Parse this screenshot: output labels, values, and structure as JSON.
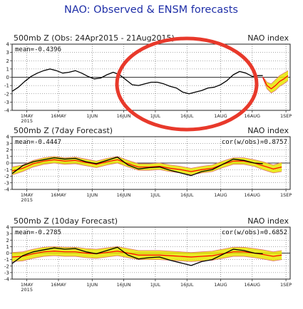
{
  "figure": {
    "title": "NAO: Observed & ENSM forecasts",
    "annotation_color": "#e8392b",
    "colors": {
      "title": "#1f2fa8",
      "observed": "#000000",
      "ensemble_mean": "#ff0000",
      "ensemble_band": "#e6e600",
      "ensemble_members": "#e07070",
      "grid": "#555555",
      "zero_line": "#333333"
    }
  },
  "chart_data": [
    {
      "type": "line",
      "title": "500mb Z (Obs: 24Apr2015 - 21Aug2015)",
      "index_label": "NAO index",
      "stat_left": "mean=-0.4396",
      "stat_right": "",
      "ylim": [
        -4,
        4
      ],
      "yticks": [
        -4,
        -3,
        -2,
        -1,
        0,
        1,
        2,
        3,
        4
      ],
      "xlim_day": [
        0,
        132
      ],
      "grid": true,
      "xtick_labels": [
        {
          "label": "1MAY",
          "sub": "2015",
          "day": 7
        },
        {
          "label": "16MAY",
          "sub": "",
          "day": 22
        },
        {
          "label": "1JUN",
          "sub": "",
          "day": 38
        },
        {
          "label": "16JUN",
          "sub": "",
          "day": 53
        },
        {
          "label": "1JUL",
          "sub": "",
          "day": 68
        },
        {
          "label": "16JUL",
          "sub": "",
          "day": 83
        },
        {
          "label": "1AUG",
          "sub": "",
          "day": 99
        },
        {
          "label": "16AUG",
          "sub": "",
          "day": 114
        },
        {
          "label": "1SEP",
          "sub": "",
          "day": 130
        }
      ],
      "series": [
        {
          "role": "observed",
          "x": [
            0,
            3,
            6,
            9,
            12,
            15,
            18,
            21,
            24,
            27,
            30,
            33,
            36,
            39,
            42,
            45,
            48,
            51,
            54,
            57,
            60,
            63,
            66,
            69,
            72,
            75,
            78,
            81,
            84,
            87,
            90,
            93,
            96,
            99,
            102,
            105,
            108,
            111,
            114,
            117,
            119
          ],
          "y": [
            -1.7,
            -1.2,
            -0.5,
            0.1,
            0.5,
            0.8,
            1.0,
            0.8,
            0.5,
            0.6,
            0.8,
            0.5,
            0.1,
            -0.2,
            -0.1,
            0.3,
            0.6,
            0.3,
            -0.3,
            -0.9,
            -1.0,
            -0.8,
            -0.6,
            -0.6,
            -0.8,
            -1.1,
            -1.3,
            -1.8,
            -2.0,
            -1.8,
            -1.6,
            -1.3,
            -1.2,
            -0.9,
            -0.4,
            0.3,
            0.7,
            0.5,
            0.1,
            0.2,
            0.2
          ]
        },
        {
          "role": "ensemble_mean",
          "x": [
            119,
            121,
            123,
            125,
            127,
            129,
            131
          ],
          "y": [
            0.0,
            -1.0,
            -1.4,
            -1.0,
            -0.5,
            -0.2,
            0.2
          ]
        },
        {
          "role": "ensemble_band_lower",
          "x": [
            119,
            121,
            123,
            125,
            127,
            129,
            131
          ],
          "y": [
            -0.1,
            -1.4,
            -1.9,
            -1.6,
            -1.1,
            -0.8,
            -0.4
          ]
        },
        {
          "role": "ensemble_band_upper",
          "x": [
            119,
            121,
            123,
            125,
            127,
            129,
            131
          ],
          "y": [
            0.1,
            -0.6,
            -0.8,
            -0.3,
            0.2,
            0.5,
            0.8
          ]
        }
      ]
    },
    {
      "type": "line",
      "title": "500mb Z (7day Forecast)",
      "index_label": "NAO index",
      "stat_left": "mean=-0.4447",
      "stat_right": "cor(w/obs)=0.8757",
      "ylim": [
        -4,
        4
      ],
      "yticks": [
        -4,
        -3,
        -2,
        -1,
        0,
        1,
        2,
        3,
        4
      ],
      "xlim_day": [
        0,
        132
      ],
      "grid": true,
      "xtick_labels": [
        {
          "label": "1MAY",
          "sub": "2015",
          "day": 7
        },
        {
          "label": "16MAY",
          "sub": "",
          "day": 22
        },
        {
          "label": "1JUN",
          "sub": "",
          "day": 38
        },
        {
          "label": "16JUN",
          "sub": "",
          "day": 53
        },
        {
          "label": "1JUL",
          "sub": "",
          "day": 68
        },
        {
          "label": "16JUL",
          "sub": "",
          "day": 83
        },
        {
          "label": "1AUG",
          "sub": "",
          "day": 99
        },
        {
          "label": "16AUG",
          "sub": "",
          "day": 114
        },
        {
          "label": "1SEP",
          "sub": "",
          "day": 130
        }
      ],
      "series": [
        {
          "role": "observed",
          "x": [
            0,
            5,
            10,
            15,
            20,
            25,
            30,
            35,
            40,
            45,
            50,
            55,
            60,
            65,
            70,
            75,
            80,
            85,
            90,
            95,
            100,
            105,
            110,
            115,
            119
          ],
          "y": [
            -1.6,
            -0.4,
            0.2,
            0.5,
            0.8,
            0.6,
            0.7,
            0.2,
            -0.1,
            0.4,
            0.9,
            -0.3,
            -0.9,
            -0.7,
            -0.6,
            -1.1,
            -1.5,
            -1.9,
            -1.3,
            -1.0,
            -0.2,
            0.6,
            0.4,
            0.0,
            -0.1
          ]
        },
        {
          "role": "ensemble_mean",
          "x": [
            0,
            5,
            10,
            15,
            20,
            25,
            30,
            35,
            40,
            45,
            50,
            55,
            60,
            65,
            70,
            75,
            80,
            85,
            90,
            95,
            100,
            105,
            110,
            115,
            119,
            124,
            128
          ],
          "y": [
            -1.2,
            -0.8,
            -0.1,
            0.3,
            0.5,
            0.3,
            0.4,
            0.1,
            -0.2,
            0.2,
            0.5,
            -0.1,
            -0.6,
            -0.6,
            -0.5,
            -0.8,
            -1.0,
            -1.3,
            -1.0,
            -0.8,
            -0.2,
            0.3,
            0.3,
            0.0,
            -0.4,
            -0.9,
            -0.6
          ]
        },
        {
          "role": "ensemble_band_lower",
          "x": [
            0,
            5,
            10,
            15,
            20,
            25,
            30,
            35,
            40,
            45,
            50,
            55,
            60,
            65,
            70,
            75,
            80,
            85,
            90,
            95,
            100,
            105,
            110,
            115,
            119,
            124,
            128
          ],
          "y": [
            -1.8,
            -1.3,
            -0.6,
            -0.2,
            0.0,
            -0.2,
            -0.1,
            -0.4,
            -0.7,
            -0.3,
            0.0,
            -0.6,
            -1.1,
            -1.1,
            -1.0,
            -1.3,
            -1.5,
            -1.8,
            -1.5,
            -1.3,
            -0.7,
            -0.2,
            -0.2,
            -0.5,
            -1.0,
            -1.5,
            -1.3
          ]
        },
        {
          "role": "ensemble_band_upper",
          "x": [
            0,
            5,
            10,
            15,
            20,
            25,
            30,
            35,
            40,
            45,
            50,
            55,
            60,
            65,
            70,
            75,
            80,
            85,
            90,
            95,
            100,
            105,
            110,
            115,
            119,
            124,
            128
          ],
          "y": [
            -0.6,
            -0.3,
            0.4,
            0.8,
            1.0,
            0.8,
            0.9,
            0.6,
            0.3,
            0.7,
            1.0,
            0.4,
            -0.1,
            -0.1,
            0.0,
            -0.3,
            -0.5,
            -0.8,
            -0.5,
            -0.3,
            0.3,
            0.8,
            0.8,
            0.5,
            0.2,
            -0.3,
            0.1
          ]
        }
      ]
    },
    {
      "type": "line",
      "title": "500mb Z (10day Forecast)",
      "index_label": "NAO index",
      "stat_left": "mean=-0.2785",
      "stat_right": "cor(w/obs)=0.6852",
      "ylim": [
        -4,
        4
      ],
      "yticks": [
        -4,
        -3,
        -2,
        -1,
        0,
        1,
        2,
        3,
        4
      ],
      "xlim_day": [
        0,
        132
      ],
      "grid": true,
      "xtick_labels": [
        {
          "label": "1MAY",
          "sub": "2015",
          "day": 7
        },
        {
          "label": "16MAY",
          "sub": "",
          "day": 22
        },
        {
          "label": "1JUN",
          "sub": "",
          "day": 38
        },
        {
          "label": "16JUN",
          "sub": "",
          "day": 53
        },
        {
          "label": "1JUL",
          "sub": "",
          "day": 68
        },
        {
          "label": "16JUL",
          "sub": "",
          "day": 83
        },
        {
          "label": "1AUG",
          "sub": "",
          "day": 99
        },
        {
          "label": "16AUG",
          "sub": "",
          "day": 114
        },
        {
          "label": "1SEP",
          "sub": "",
          "day": 130
        }
      ],
      "series": [
        {
          "role": "observed",
          "x": [
            0,
            5,
            10,
            15,
            20,
            25,
            30,
            35,
            40,
            45,
            50,
            55,
            60,
            65,
            70,
            75,
            80,
            85,
            90,
            95,
            100,
            105,
            110,
            115,
            119
          ],
          "y": [
            -1.6,
            -0.4,
            0.2,
            0.5,
            0.8,
            0.6,
            0.7,
            0.2,
            -0.1,
            0.4,
            0.9,
            -0.3,
            -0.9,
            -0.7,
            -0.6,
            -1.1,
            -1.5,
            -1.9,
            -1.3,
            -1.0,
            -0.2,
            0.6,
            0.4,
            0.0,
            -0.1
          ]
        },
        {
          "role": "ensemble_mean",
          "x": [
            0,
            5,
            10,
            15,
            20,
            25,
            30,
            35,
            40,
            45,
            50,
            55,
            60,
            65,
            70,
            75,
            80,
            85,
            90,
            95,
            100,
            105,
            110,
            115,
            119,
            124,
            128
          ],
          "y": [
            -0.6,
            -0.5,
            -0.1,
            0.2,
            0.3,
            0.2,
            0.2,
            0.0,
            -0.1,
            0.1,
            0.3,
            0.0,
            -0.3,
            -0.3,
            -0.3,
            -0.4,
            -0.5,
            -0.6,
            -0.5,
            -0.4,
            -0.1,
            0.2,
            0.2,
            0.0,
            -0.2,
            -0.5,
            -0.3
          ]
        },
        {
          "role": "ensemble_band_lower",
          "x": [
            0,
            5,
            10,
            15,
            20,
            25,
            30,
            35,
            40,
            45,
            50,
            55,
            60,
            65,
            70,
            75,
            80,
            85,
            90,
            95,
            100,
            105,
            110,
            115,
            119,
            124,
            128
          ],
          "y": [
            -1.3,
            -1.2,
            -0.8,
            -0.5,
            -0.4,
            -0.5,
            -0.5,
            -0.7,
            -0.8,
            -0.6,
            -0.4,
            -0.7,
            -1.0,
            -1.0,
            -1.0,
            -1.1,
            -1.2,
            -1.3,
            -1.2,
            -1.1,
            -0.8,
            -0.5,
            -0.5,
            -0.7,
            -0.9,
            -1.2,
            -1.0
          ]
        },
        {
          "role": "ensemble_band_upper",
          "x": [
            0,
            5,
            10,
            15,
            20,
            25,
            30,
            35,
            40,
            45,
            50,
            55,
            60,
            65,
            70,
            75,
            80,
            85,
            90,
            95,
            100,
            105,
            110,
            115,
            119,
            124,
            128
          ],
          "y": [
            0.1,
            0.2,
            0.6,
            0.9,
            1.0,
            0.9,
            0.9,
            0.7,
            0.6,
            0.8,
            1.0,
            0.7,
            0.4,
            0.4,
            0.4,
            0.3,
            0.2,
            0.1,
            0.2,
            0.3,
            0.6,
            0.9,
            0.9,
            0.7,
            0.5,
            0.2,
            0.4
          ]
        }
      ]
    }
  ]
}
